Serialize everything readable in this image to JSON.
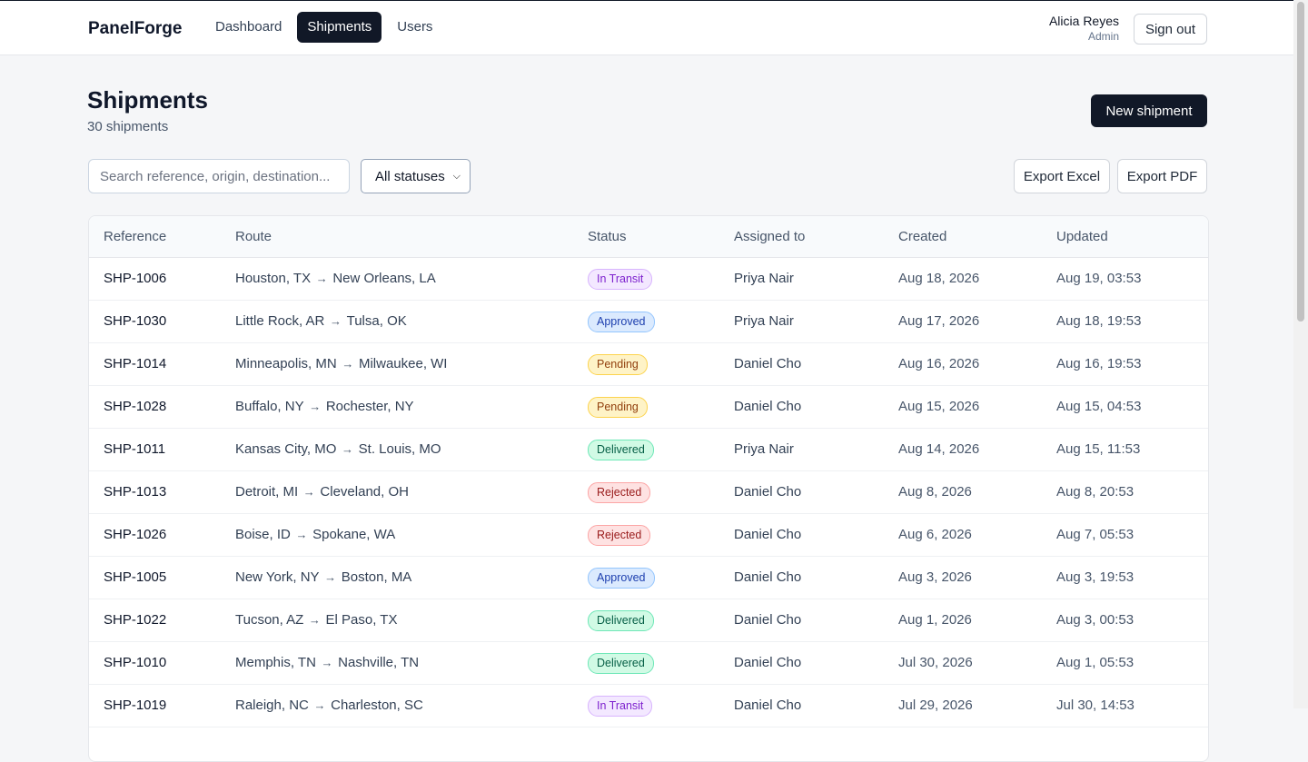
{
  "brand": "PanelForge",
  "nav": [
    {
      "label": "Dashboard",
      "active": false
    },
    {
      "label": "Shipments",
      "active": true
    },
    {
      "label": "Users",
      "active": false
    }
  ],
  "user": {
    "name": "Alicia Reyes",
    "role": "Admin"
  },
  "sign_out_label": "Sign out",
  "page": {
    "title": "Shipments",
    "subtitle": "30 shipments"
  },
  "new_shipment_label": "New shipment",
  "search": {
    "placeholder": "Search reference, origin, destination..."
  },
  "status_filter": {
    "selected": "All statuses"
  },
  "export_excel_label": "Export Excel",
  "export_pdf_label": "Export PDF",
  "columns": [
    "Reference",
    "Route",
    "Status",
    "Assigned to",
    "Created",
    "Updated"
  ],
  "status_colors": {
    "In Transit": {
      "bg": "#f3e8ff",
      "border": "#d8b4fe",
      "text": "#7e22ce"
    },
    "Approved": {
      "bg": "#dbeafe",
      "border": "#93c5fd",
      "text": "#1e40af"
    },
    "Pending": {
      "bg": "#fef3c7",
      "border": "#fcd34d",
      "text": "#92400e"
    },
    "Delivered": {
      "bg": "#d1fae5",
      "border": "#6ee7b7",
      "text": "#065f46"
    },
    "Rejected": {
      "bg": "#fee2e2",
      "border": "#fca5a5",
      "text": "#991b1b"
    }
  },
  "rows": [
    {
      "ref": "SHP-1006",
      "origin": "Houston, TX",
      "dest": "New Orleans, LA",
      "status": "In Transit",
      "assigned": "Priya Nair",
      "created": "Aug 18, 2026",
      "updated": "Aug 19, 03:53"
    },
    {
      "ref": "SHP-1030",
      "origin": "Little Rock, AR",
      "dest": "Tulsa, OK",
      "status": "Approved",
      "assigned": "Priya Nair",
      "created": "Aug 17, 2026",
      "updated": "Aug 18, 19:53"
    },
    {
      "ref": "SHP-1014",
      "origin": "Minneapolis, MN",
      "dest": "Milwaukee, WI",
      "status": "Pending",
      "assigned": "Daniel Cho",
      "created": "Aug 16, 2026",
      "updated": "Aug 16, 19:53"
    },
    {
      "ref": "SHP-1028",
      "origin": "Buffalo, NY",
      "dest": "Rochester, NY",
      "status": "Pending",
      "assigned": "Daniel Cho",
      "created": "Aug 15, 2026",
      "updated": "Aug 15, 04:53"
    },
    {
      "ref": "SHP-1011",
      "origin": "Kansas City, MO",
      "dest": "St. Louis, MO",
      "status": "Delivered",
      "assigned": "Priya Nair",
      "created": "Aug 14, 2026",
      "updated": "Aug 15, 11:53"
    },
    {
      "ref": "SHP-1013",
      "origin": "Detroit, MI",
      "dest": "Cleveland, OH",
      "status": "Rejected",
      "assigned": "Daniel Cho",
      "created": "Aug 8, 2026",
      "updated": "Aug 8, 20:53"
    },
    {
      "ref": "SHP-1026",
      "origin": "Boise, ID",
      "dest": "Spokane, WA",
      "status": "Rejected",
      "assigned": "Daniel Cho",
      "created": "Aug 6, 2026",
      "updated": "Aug 7, 05:53"
    },
    {
      "ref": "SHP-1005",
      "origin": "New York, NY",
      "dest": "Boston, MA",
      "status": "Approved",
      "assigned": "Daniel Cho",
      "created": "Aug 3, 2026",
      "updated": "Aug 3, 19:53"
    },
    {
      "ref": "SHP-1022",
      "origin": "Tucson, AZ",
      "dest": "El Paso, TX",
      "status": "Delivered",
      "assigned": "Daniel Cho",
      "created": "Aug 1, 2026",
      "updated": "Aug 3, 00:53"
    },
    {
      "ref": "SHP-1010",
      "origin": "Memphis, TN",
      "dest": "Nashville, TN",
      "status": "Delivered",
      "assigned": "Daniel Cho",
      "created": "Jul 30, 2026",
      "updated": "Aug 1, 05:53"
    },
    {
      "ref": "SHP-1019",
      "origin": "Raleigh, NC",
      "dest": "Charleston, SC",
      "status": "In Transit",
      "assigned": "Daniel Cho",
      "created": "Jul 29, 2026",
      "updated": "Jul 30, 14:53"
    }
  ]
}
